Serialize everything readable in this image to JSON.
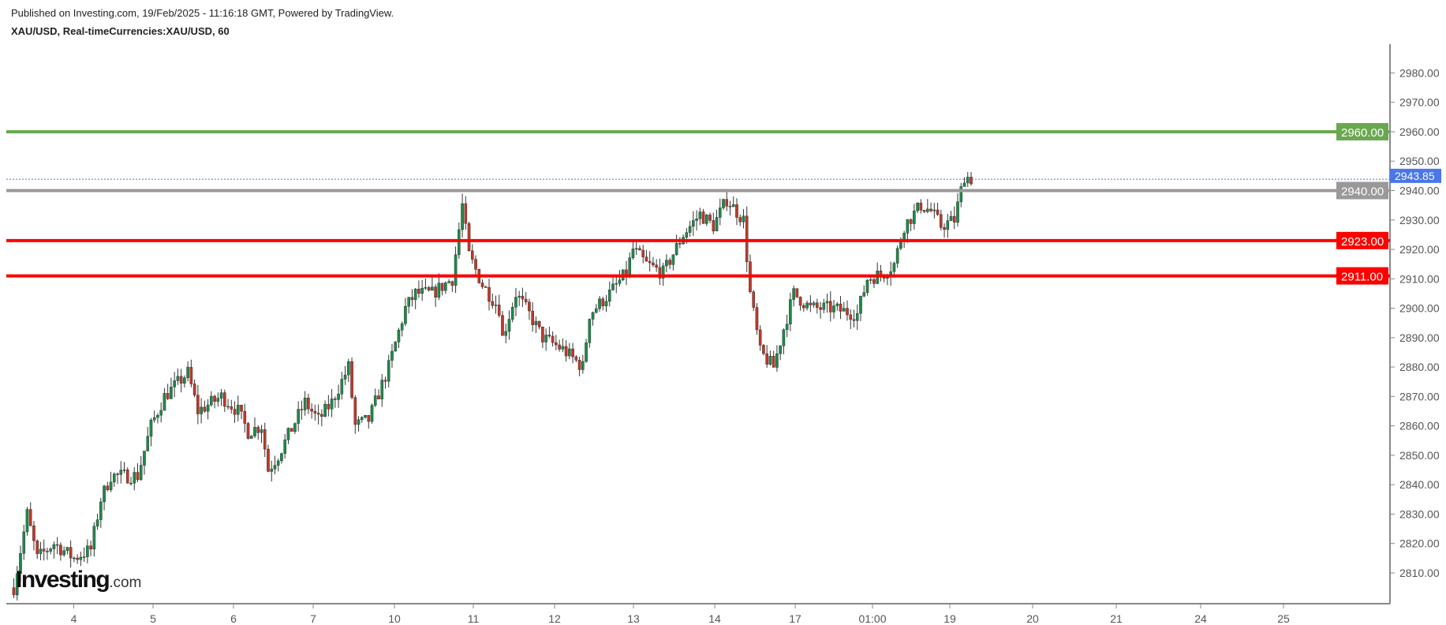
{
  "header": {
    "published": "Published on Investing.com, 19/Feb/2025 - 11:16:18 GMT, Powered by TradingView.",
    "symbol": "XAU/USD, Real-timeCurrencies:XAU/USD, 60"
  },
  "logo": {
    "brand": "Investing",
    "suffix": ".com"
  },
  "chart_data": {
    "type": "candlestick",
    "title": "XAU/USD, Real-timeCurrencies:XAU/USD, 60",
    "y_ticks": [
      "2980.00",
      "2970.00",
      "2960.00",
      "2950.00",
      "2940.00",
      "2930.00",
      "2920.00",
      "2910.00",
      "2900.00",
      "2890.00",
      "2880.00",
      "2870.00",
      "2860.00",
      "2850.00",
      "2840.00",
      "2830.00",
      "2820.00",
      "2810.00"
    ],
    "ylim": [
      2800,
      2985
    ],
    "x_ticks": [
      "4",
      "5",
      "6",
      "7",
      "10",
      "11",
      "12",
      "13",
      "14",
      "17",
      "01:00",
      "19",
      "20",
      "21",
      "24",
      "25"
    ],
    "price_path_anchors": [
      [
        0,
        2805
      ],
      [
        4,
        2830
      ],
      [
        7,
        2815
      ],
      [
        12,
        2820
      ],
      [
        18,
        2815
      ],
      [
        23,
        2818
      ],
      [
        26,
        2835
      ],
      [
        29,
        2843
      ],
      [
        37,
        2843
      ],
      [
        41,
        2860
      ],
      [
        45,
        2870
      ],
      [
        52,
        2878
      ],
      [
        55,
        2865
      ],
      [
        62,
        2870
      ],
      [
        67,
        2865
      ],
      [
        70,
        2858
      ],
      [
        74,
        2860
      ],
      [
        76,
        2845
      ],
      [
        79,
        2850
      ],
      [
        87,
        2868
      ],
      [
        91,
        2862
      ],
      [
        95,
        2868
      ],
      [
        100,
        2880
      ],
      [
        102,
        2860
      ],
      [
        106,
        2862
      ],
      [
        112,
        2880
      ],
      [
        117,
        2900
      ],
      [
        120,
        2905
      ],
      [
        125,
        2905
      ],
      [
        131,
        2910
      ],
      [
        134,
        2935
      ],
      [
        136,
        2918
      ],
      [
        140,
        2908
      ],
      [
        145,
        2900
      ],
      [
        146,
        2890
      ],
      [
        150,
        2905
      ],
      [
        154,
        2898
      ],
      [
        158,
        2890
      ],
      [
        164,
        2886
      ],
      [
        168,
        2882
      ],
      [
        170,
        2880
      ],
      [
        172,
        2898
      ],
      [
        178,
        2905
      ],
      [
        183,
        2912
      ],
      [
        185,
        2920
      ],
      [
        189,
        2915
      ],
      [
        194,
        2912
      ],
      [
        200,
        2925
      ],
      [
        205,
        2932
      ],
      [
        209,
        2928
      ],
      [
        213,
        2937
      ],
      [
        218,
        2930
      ],
      [
        220,
        2905
      ],
      [
        223,
        2885
      ],
      [
        227,
        2880
      ],
      [
        230,
        2893
      ],
      [
        233,
        2905
      ],
      [
        238,
        2900
      ],
      [
        244,
        2900
      ],
      [
        252,
        2898
      ],
      [
        255,
        2910
      ],
      [
        260,
        2912
      ],
      [
        263,
        2915
      ],
      [
        266,
        2928
      ],
      [
        271,
        2935
      ],
      [
        274,
        2933
      ],
      [
        277,
        2928
      ],
      [
        281,
        2930
      ],
      [
        284,
        2945
      ],
      [
        286,
        2944
      ]
    ],
    "levels": [
      {
        "price": 2960.0,
        "label": "2960.00",
        "color": "#6aa84f",
        "style": "solid"
      },
      {
        "price": 2940.0,
        "label": "2940.00",
        "color": "#999999",
        "style": "solid"
      },
      {
        "price": 2923.0,
        "label": "2923.00",
        "color": "#ff0000",
        "style": "solid"
      },
      {
        "price": 2911.0,
        "label": "2911.00",
        "color": "#ff0000",
        "style": "solid"
      }
    ],
    "last_price": {
      "price": 2943.85,
      "label": "2943.85",
      "color": "#4a76e8"
    },
    "up_color": "#1f8a4c",
    "down_color": "#c0392b"
  }
}
